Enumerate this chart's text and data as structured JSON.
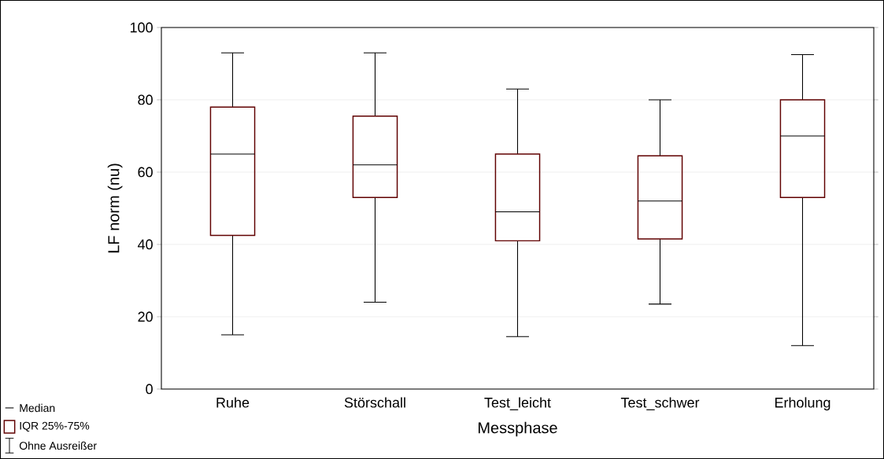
{
  "chart_data": {
    "type": "box",
    "xlabel": "Messphase",
    "ylabel": "LF norm (nu)",
    "categories": [
      "Ruhe",
      "Störschall",
      "Test_leicht",
      "Test_schwer",
      "Erholung"
    ],
    "color": "#600000",
    "boxes": [
      {
        "low": 15,
        "q1": 42.5,
        "median": 65,
        "q3": 78,
        "high": 93
      },
      {
        "low": 24,
        "q1": 53,
        "median": 62,
        "q3": 75.5,
        "high": 93
      },
      {
        "low": 14.5,
        "q1": 41,
        "median": 49,
        "q3": 65,
        "high": 83
      },
      {
        "low": 23.5,
        "q1": 41.5,
        "median": 52,
        "q3": 64.5,
        "high": 80
      },
      {
        "low": 12,
        "q1": 53,
        "median": 70,
        "q3": 80,
        "high": 92.5
      }
    ],
    "ylim": [
      0,
      100
    ],
    "yticks": [
      0,
      20,
      40,
      60,
      80,
      100
    ],
    "grid": "y",
    "annotations": [
      "Median",
      "IQR 25%-75%",
      "Ohne Ausreißer"
    ]
  }
}
